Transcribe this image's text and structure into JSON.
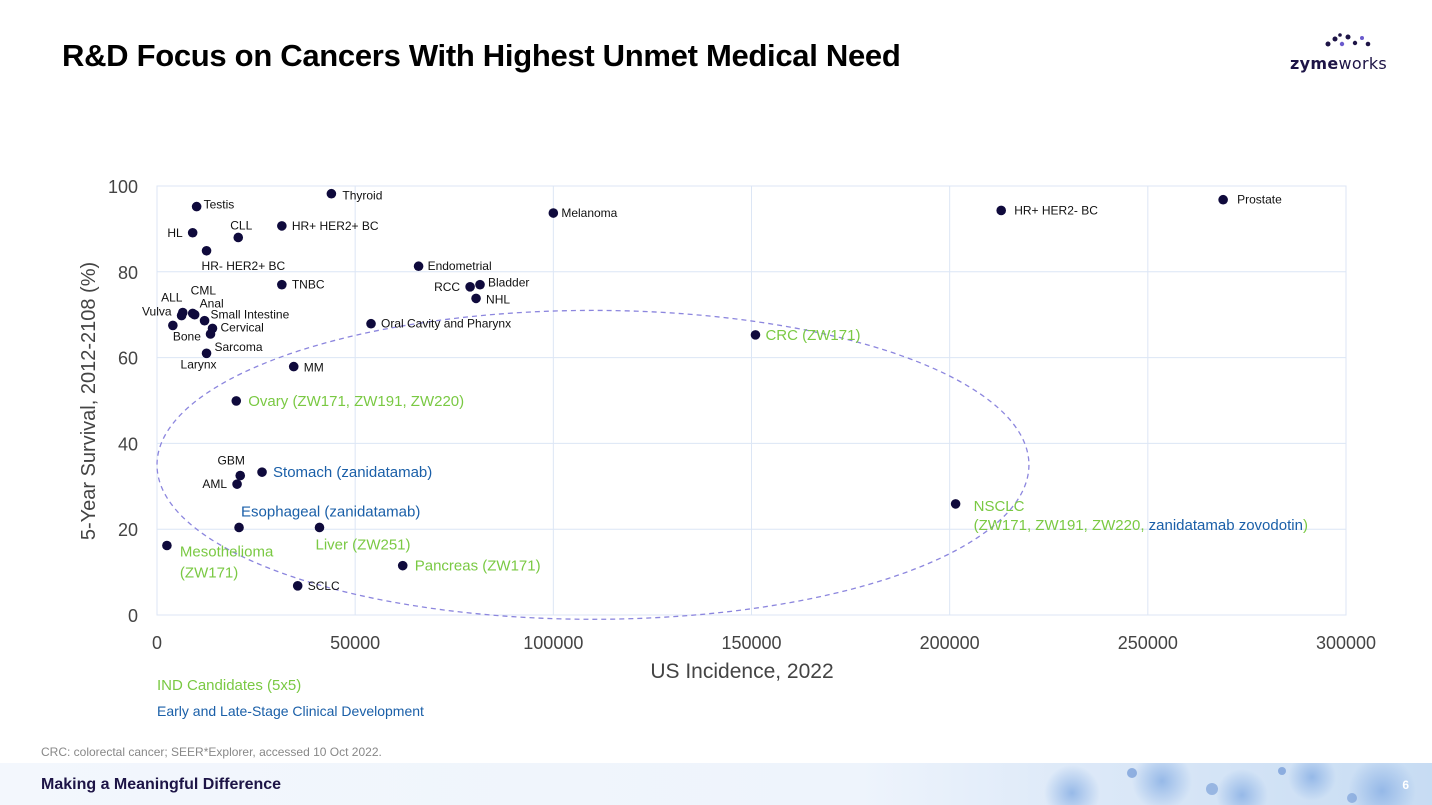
{
  "slide": {
    "title": "R&D Focus on Cancers With Highest Unmet Medical Need",
    "logo": {
      "part1": "zyme",
      "part2": "works"
    },
    "legend": {
      "ind_candidates": "IND Candidates (5x5)",
      "clinical": "Early and Late-Stage Clinical Development"
    },
    "footnote": "CRC: colorectal cancer; SEER*Explorer, accessed 10 Oct 2022.",
    "footer_text": "Making a Meaningful Difference",
    "page_number": "6"
  },
  "colors": {
    "point": "#0f0a3c",
    "green": "#7ac943",
    "blue": "#1a5fa8",
    "grid": "#dce6f5",
    "ellipse": "#8c86de"
  },
  "chart_data": {
    "type": "scatter",
    "xlabel": "US Incidence, 2022",
    "ylabel": "5-Year Survival, 2012-2108 (%)",
    "xlim": [
      0,
      300000
    ],
    "ylim": [
      0,
      100
    ],
    "xticks": [
      0,
      50000,
      100000,
      150000,
      200000,
      250000,
      300000
    ],
    "yticks": [
      0,
      20,
      40,
      60,
      80,
      100
    ],
    "points": [
      {
        "name": "Thyroid",
        "x": 44000,
        "y": 98.2,
        "label_color": "black"
      },
      {
        "name": "Testis",
        "x": 10000,
        "y": 95.2,
        "label_color": "black"
      },
      {
        "name": "Melanoma",
        "x": 100000,
        "y": 93.7,
        "label_color": "black"
      },
      {
        "name": "HR+ HER2- BC",
        "x": 213000,
        "y": 94.3,
        "label_color": "black"
      },
      {
        "name": "Prostate",
        "x": 269000,
        "y": 96.8,
        "label_color": "black"
      },
      {
        "name": "CLL",
        "x": 20500,
        "y": 88.0,
        "label_color": "black"
      },
      {
        "name": "HR+ HER2+ BC",
        "x": 31500,
        "y": 90.7,
        "label_color": "black"
      },
      {
        "name": "HL",
        "x": 9000,
        "y": 89.1,
        "label_color": "black"
      },
      {
        "name": "HR- HER2+ BC",
        "x": 12500,
        "y": 84.9,
        "label_color": "black"
      },
      {
        "name": "Endometrial",
        "x": 66000,
        "y": 81.3,
        "label_color": "black"
      },
      {
        "name": "TNBC",
        "x": 31500,
        "y": 77.0,
        "label_color": "black"
      },
      {
        "name": "RCC",
        "x": 79000,
        "y": 76.5,
        "label_color": "black"
      },
      {
        "name": "Bladder",
        "x": 81500,
        "y": 77.0,
        "label_color": "black"
      },
      {
        "name": "NHL",
        "x": 80500,
        "y": 73.8,
        "label_color": "black"
      },
      {
        "name": "CML",
        "x": 9000,
        "y": 70.3,
        "label_color": "black"
      },
      {
        "name": "ALL",
        "x": 6500,
        "y": 70.5,
        "label_color": "black"
      },
      {
        "name": "Anal",
        "x": 9500,
        "y": 70.0,
        "label_color": "black"
      },
      {
        "name": "Vulva",
        "x": 6200,
        "y": 69.8,
        "label_color": "black"
      },
      {
        "name": "Small Intestine",
        "x": 12000,
        "y": 68.6,
        "label_color": "black"
      },
      {
        "name": "Cervical",
        "x": 14000,
        "y": 66.8,
        "label_color": "black"
      },
      {
        "name": "Bone",
        "x": 4000,
        "y": 67.5,
        "label_color": "black"
      },
      {
        "name": "Sarcoma",
        "x": 13500,
        "y": 65.5,
        "label_color": "black"
      },
      {
        "name": "Oral Cavity and Pharynx",
        "x": 54000,
        "y": 67.9,
        "label_color": "black"
      },
      {
        "name": "CRC (ZW171)",
        "x": 151000,
        "y": 65.3,
        "label_color": "green"
      },
      {
        "name": "Larynx",
        "x": 12500,
        "y": 61.0,
        "label_color": "black"
      },
      {
        "name": "MM",
        "x": 34500,
        "y": 57.9,
        "label_color": "black"
      },
      {
        "name": "Ovary (ZW171, ZW191, ZW220)",
        "x": 20000,
        "y": 49.9,
        "label_color": "green"
      },
      {
        "name": "GBM",
        "x": 21000,
        "y": 32.5,
        "label_color": "black"
      },
      {
        "name": "Stomach (zanidatamab)",
        "x": 26500,
        "y": 33.3,
        "label_color": "blue"
      },
      {
        "name": "AML",
        "x": 20200,
        "y": 30.5,
        "label_color": "black"
      },
      {
        "name": "NSCLC",
        "x": 201500,
        "y": 25.9,
        "label_color": "green"
      },
      {
        "name": "Esophageal (zanidatamab)",
        "x": 20700,
        "y": 20.4,
        "label_color": "blue"
      },
      {
        "name": "Liver (ZW251)",
        "x": 41000,
        "y": 20.4,
        "label_color": "green"
      },
      {
        "name": "Mesothelioma",
        "x": 2500,
        "y": 16.2,
        "label_color": "green"
      },
      {
        "name": "Pancreas (ZW171)",
        "x": 62000,
        "y": 11.5,
        "label_color": "green"
      },
      {
        "name": "SCLC",
        "x": 35500,
        "y": 6.8,
        "label_color": "black"
      }
    ],
    "extra_labels": [
      {
        "text": "(ZW171)",
        "color": "green",
        "near": "Mesothelioma"
      },
      {
        "text": "(ZW171, ZW191, ZW220, ",
        "color": "green",
        "near": "NSCLC"
      },
      {
        "text": "zanidatamab zovodotin",
        "color": "blue",
        "near": "NSCLC"
      },
      {
        "text": ")",
        "color": "green",
        "near": "NSCLC"
      }
    ],
    "ellipse": {
      "center": [
        110000,
        35
      ],
      "radius_x": 110000,
      "radius_y": 36,
      "style": "dashed"
    }
  }
}
